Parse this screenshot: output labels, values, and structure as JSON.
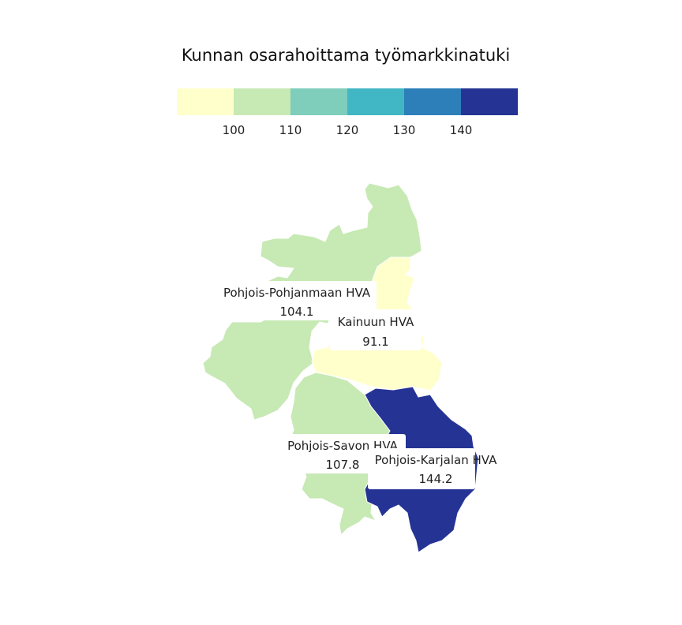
{
  "map": {
    "title": "Kunnan osarahoittama työmarkkinatuki",
    "legend": {
      "colors": [
        "#ffffcc",
        "#c7e9b4",
        "#7fcdbb",
        "#41b6c4",
        "#2c7fb8",
        "#253494"
      ],
      "ticks": [
        "100",
        "110",
        "120",
        "130",
        "140"
      ],
      "thresholds": [
        100,
        110,
        120,
        130,
        140
      ]
    },
    "regions": [
      {
        "name": "Pohjois-Pohjanmaan HVA",
        "value": "104.1",
        "color": "#c7e9b4"
      },
      {
        "name": "Kainuun HVA",
        "value": "91.1",
        "color": "#ffffcc"
      },
      {
        "name": "Pohjois-Savon HVA",
        "value": "107.8",
        "color": "#c7e9b4"
      },
      {
        "name": "Pohjois-Karjalan HVA",
        "value": "144.2",
        "color": "#253494"
      }
    ]
  }
}
